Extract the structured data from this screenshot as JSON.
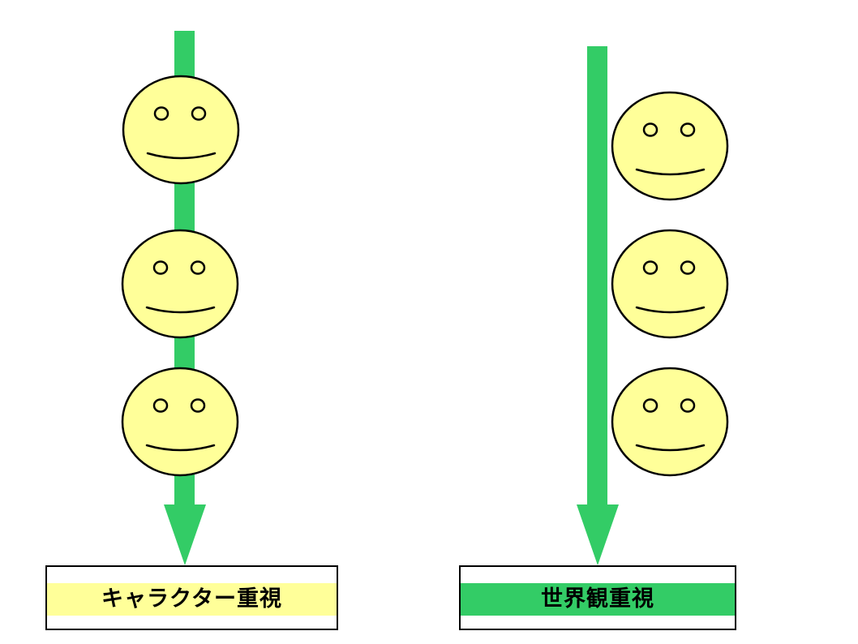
{
  "colors": {
    "arrow": "#33cc66",
    "face_fill": "#ffff99",
    "outline": "#000000",
    "left_label_band": "#ffff99",
    "right_label_band": "#33cc66"
  },
  "icons": {
    "face": "smiley-face-icon"
  },
  "panels": {
    "left": {
      "label": "キャラクター重視",
      "arrow_passes_through_faces": true,
      "face_count": 3
    },
    "right": {
      "label": "世界観重視",
      "arrow_passes_through_faces": false,
      "face_count": 3
    }
  }
}
